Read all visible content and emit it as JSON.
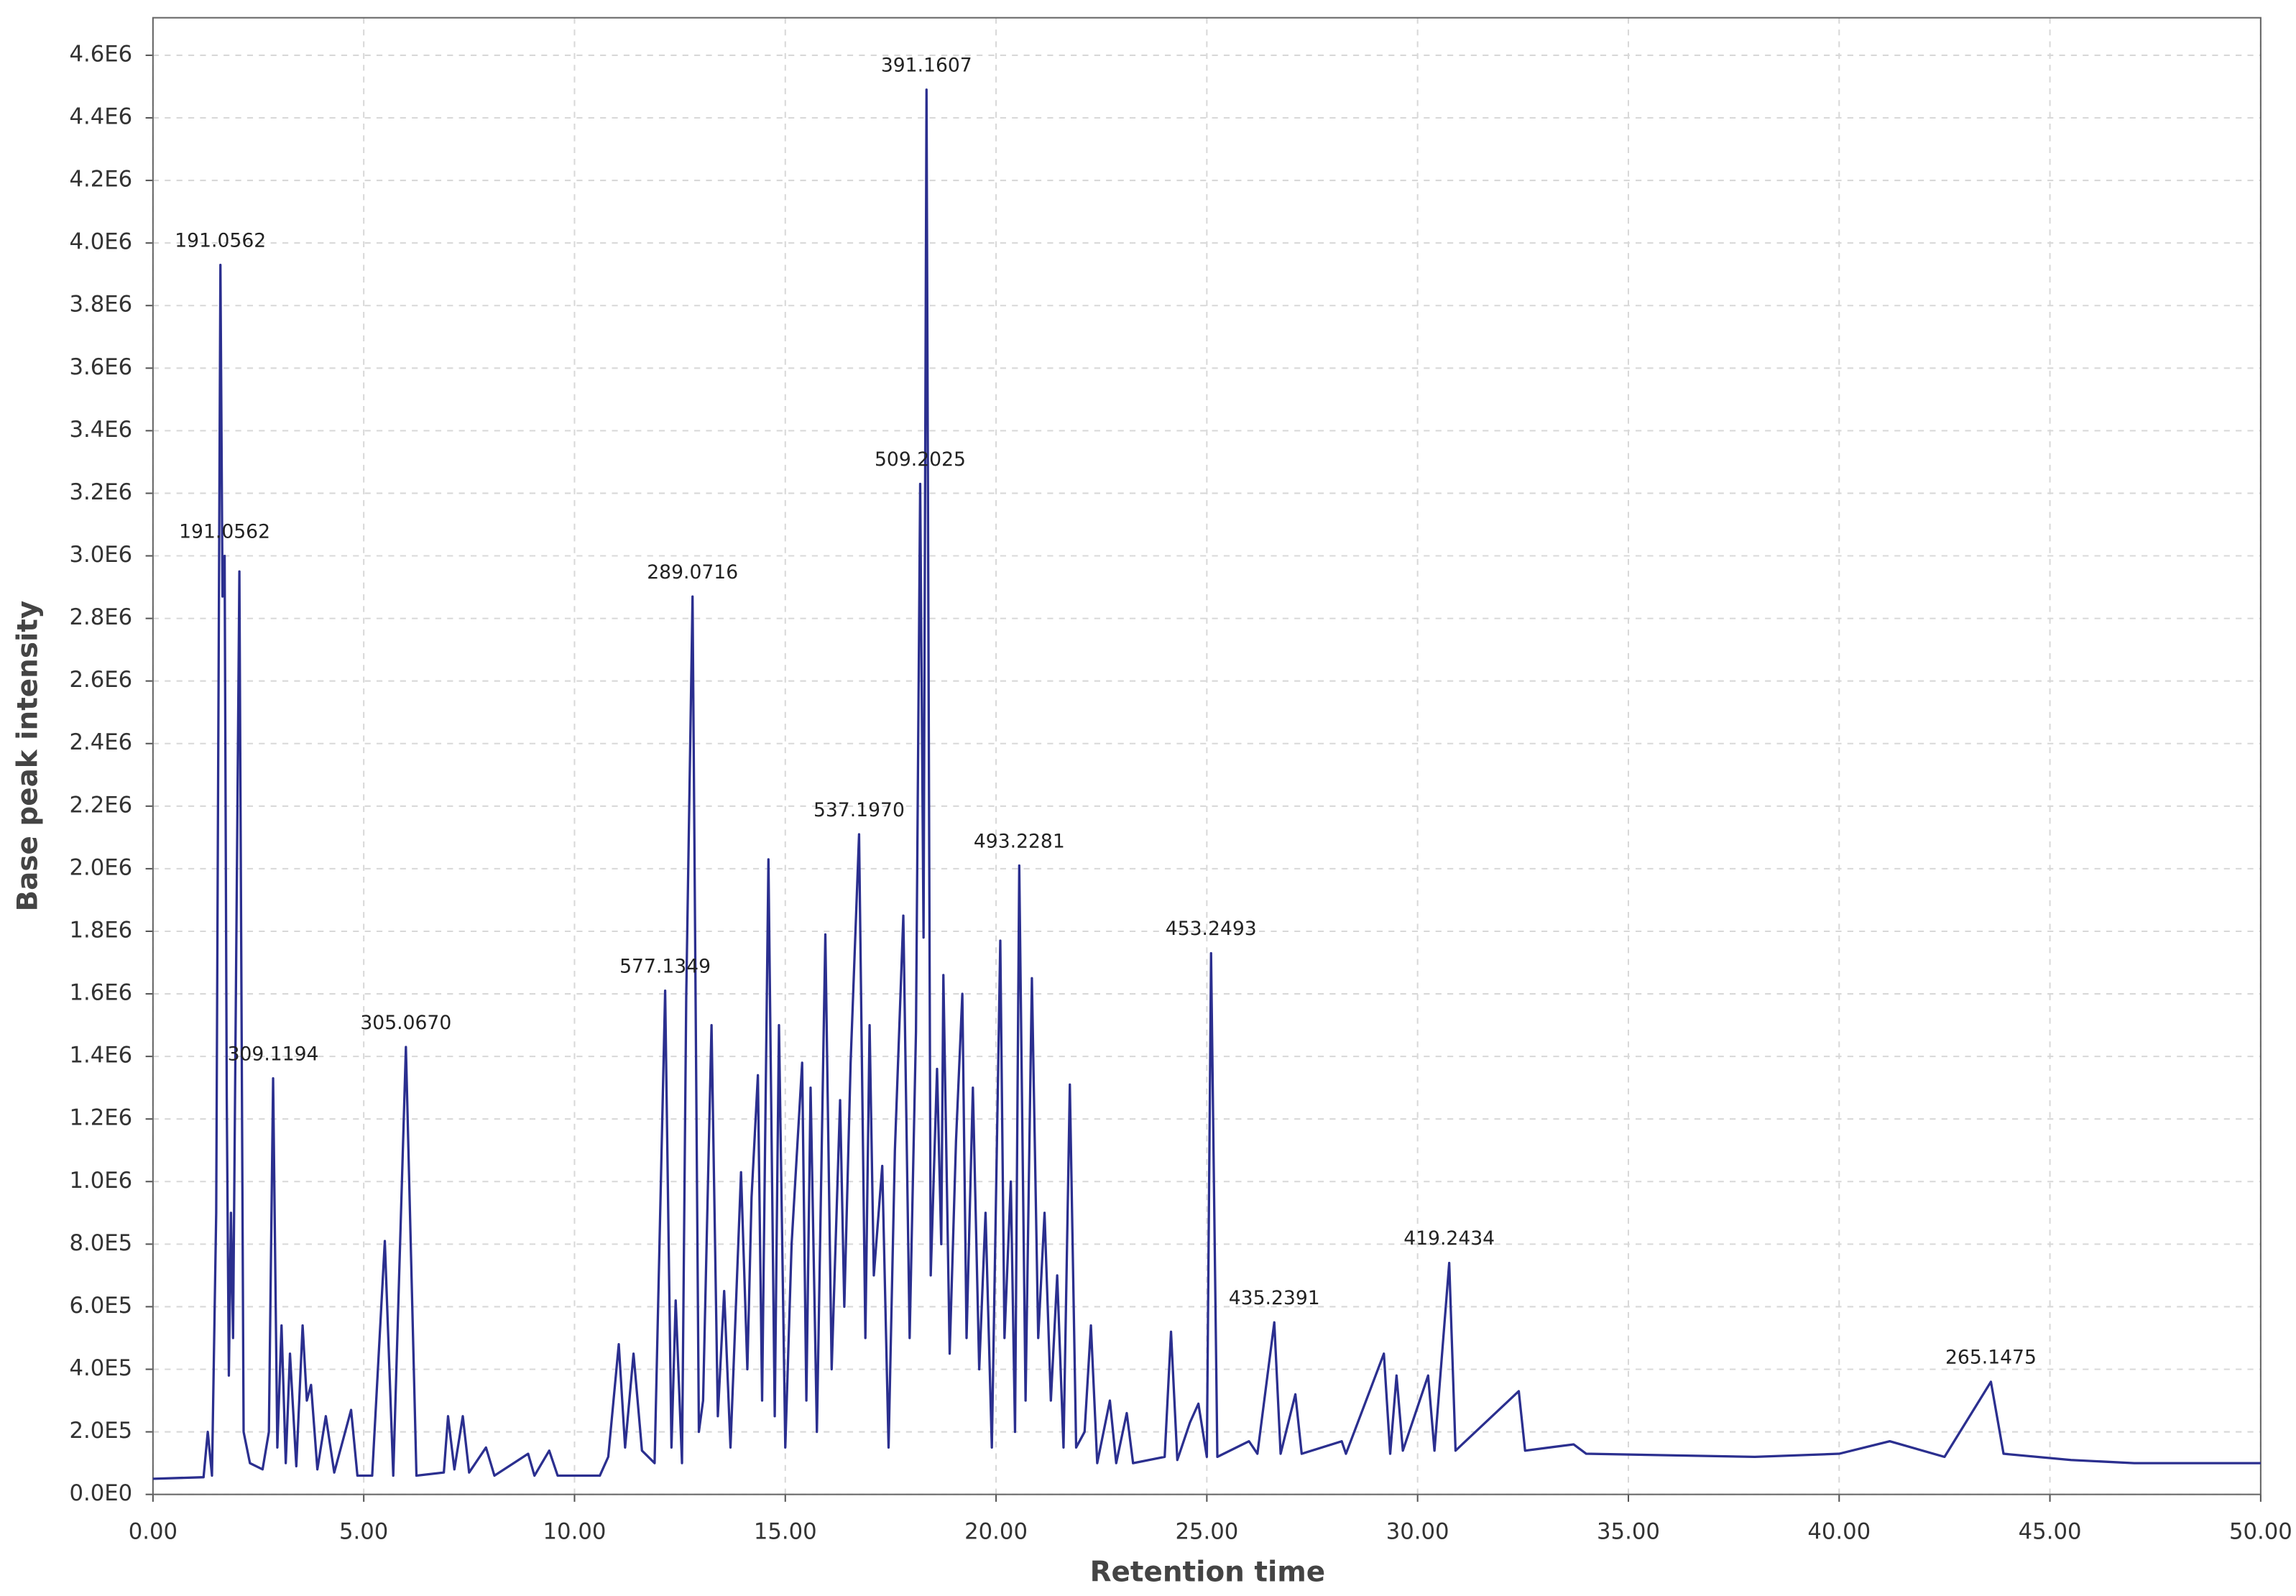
{
  "chart_data": {
    "type": "line",
    "x_label": "Retention time",
    "y_label": "Base peak intensity",
    "color": "#2b2f8f",
    "grid": true,
    "xlim": [
      0,
      50
    ],
    "ylim": [
      0,
      4720000
    ],
    "xticks": [
      {
        "value": 0,
        "label": "0.00"
      },
      {
        "value": 5,
        "label": "5.00"
      },
      {
        "value": 10,
        "label": "10.00"
      },
      {
        "value": 15,
        "label": "15.00"
      },
      {
        "value": 20,
        "label": "20.00"
      },
      {
        "value": 25,
        "label": "25.00"
      },
      {
        "value": 30,
        "label": "30.00"
      },
      {
        "value": 35,
        "label": "35.00"
      },
      {
        "value": 40,
        "label": "40.00"
      },
      {
        "value": 45,
        "label": "45.00"
      },
      {
        "value": 50,
        "label": "50.00"
      }
    ],
    "yticks": [
      {
        "value": 0,
        "label": "0.0E0"
      },
      {
        "value": 200000,
        "label": "2.0E5"
      },
      {
        "value": 400000,
        "label": "4.0E5"
      },
      {
        "value": 600000,
        "label": "6.0E5"
      },
      {
        "value": 800000,
        "label": "8.0E5"
      },
      {
        "value": 1000000,
        "label": "1.0E6"
      },
      {
        "value": 1200000,
        "label": "1.2E6"
      },
      {
        "value": 1400000,
        "label": "1.4E6"
      },
      {
        "value": 1600000,
        "label": "1.6E6"
      },
      {
        "value": 1800000,
        "label": "1.8E6"
      },
      {
        "value": 2000000,
        "label": "2.0E6"
      },
      {
        "value": 2200000,
        "label": "2.2E6"
      },
      {
        "value": 2400000,
        "label": "2.4E6"
      },
      {
        "value": 2600000,
        "label": "2.6E6"
      },
      {
        "value": 2800000,
        "label": "2.8E6"
      },
      {
        "value": 3000000,
        "label": "3.0E6"
      },
      {
        "value": 3200000,
        "label": "3.2E6"
      },
      {
        "value": 3400000,
        "label": "3.4E6"
      },
      {
        "value": 3600000,
        "label": "3.6E6"
      },
      {
        "value": 3800000,
        "label": "3.8E6"
      },
      {
        "value": 4000000,
        "label": "4.0E6"
      },
      {
        "value": 4200000,
        "label": "4.2E6"
      },
      {
        "value": 4400000,
        "label": "4.4E6"
      },
      {
        "value": 4600000,
        "label": "4.6E6"
      }
    ],
    "x": [
      0,
      1.2,
      1.3,
      1.4,
      1.5,
      1.6,
      1.65,
      1.7,
      1.75,
      1.8,
      1.85,
      1.9,
      2.05,
      2.15,
      2.3,
      2.6,
      2.75,
      2.85,
      2.95,
      3.05,
      3.15,
      3.25,
      3.4,
      3.55,
      3.65,
      3.75,
      3.9,
      4.1,
      4.3,
      4.7,
      4.85,
      5.2,
      5.5,
      5.7,
      6.0,
      6.25,
      6.9,
      7.0,
      7.15,
      7.35,
      7.5,
      7.9,
      8.1,
      8.9,
      9.05,
      9.4,
      9.6,
      10.6,
      10.8,
      11.05,
      11.2,
      11.4,
      11.6,
      11.9,
      12.15,
      12.3,
      12.4,
      12.55,
      12.65,
      12.8,
      12.95,
      13.05,
      13.25,
      13.4,
      13.55,
      13.7,
      13.95,
      14.1,
      14.2,
      14.35,
      14.45,
      14.6,
      14.75,
      14.85,
      15.0,
      15.15,
      15.4,
      15.5,
      15.6,
      15.75,
      15.95,
      16.1,
      16.3,
      16.4,
      16.55,
      16.75,
      16.9,
      17.0,
      17.1,
      17.3,
      17.45,
      17.6,
      17.8,
      17.95,
      18.1,
      18.2,
      18.28,
      18.35,
      18.45,
      18.6,
      18.7,
      18.75,
      18.9,
      19.05,
      19.2,
      19.3,
      19.45,
      19.6,
      19.75,
      19.9,
      20.1,
      20.2,
      20.35,
      20.45,
      20.55,
      20.7,
      20.85,
      21.0,
      21.15,
      21.3,
      21.45,
      21.6,
      21.75,
      21.9,
      22.1,
      22.25,
      22.4,
      22.7,
      22.85,
      23.1,
      23.25,
      24.0,
      24.15,
      24.3,
      24.6,
      24.8,
      25.0,
      25.1,
      25.25,
      26.0,
      26.2,
      26.6,
      26.75,
      27.1,
      27.25,
      28.2,
      28.3,
      29.2,
      29.35,
      29.5,
      29.65,
      30.25,
      30.4,
      30.75,
      30.9,
      32.4,
      32.55,
      33.7,
      34,
      38,
      40,
      41.2,
      42.5,
      43.6,
      43.9,
      45.5,
      47,
      50
    ],
    "values": [
      50000,
      55000,
      200000,
      60000,
      900000,
      3930000,
      2870000,
      3000000,
      1270000,
      380000,
      900000,
      500000,
      2950000,
      200000,
      100000,
      80000,
      200000,
      1330000,
      150000,
      540000,
      100000,
      450000,
      90000,
      540000,
      300000,
      350000,
      80000,
      250000,
      70000,
      270000,
      60000,
      60000,
      810000,
      60000,
      1430000,
      60000,
      70000,
      250000,
      80000,
      250000,
      70000,
      150000,
      60000,
      130000,
      60000,
      140000,
      60000,
      60000,
      120000,
      480000,
      150000,
      450000,
      140000,
      100000,
      1610000,
      150000,
      620000,
      100000,
      1590000,
      2870000,
      200000,
      300000,
      1500000,
      250000,
      650000,
      150000,
      1030000,
      400000,
      950000,
      1340000,
      300000,
      2030000,
      250000,
      1500000,
      150000,
      800000,
      1380000,
      300000,
      1300000,
      200000,
      1790000,
      400000,
      1260000,
      600000,
      1380000,
      2110000,
      500000,
      1500000,
      700000,
      1050000,
      150000,
      1100000,
      1850000,
      500000,
      1480000,
      3230000,
      1780000,
      4490000,
      700000,
      1360000,
      800000,
      1660000,
      450000,
      1130000,
      1600000,
      500000,
      1300000,
      400000,
      900000,
      150000,
      1770000,
      500000,
      1000000,
      200000,
      2010000,
      300000,
      1650000,
      500000,
      900000,
      300000,
      700000,
      150000,
      1310000,
      150000,
      200000,
      540000,
      100000,
      300000,
      100000,
      260000,
      100000,
      120000,
      520000,
      110000,
      230000,
      290000,
      120000,
      1730000,
      120000,
      170000,
      130000,
      550000,
      130000,
      320000,
      130000,
      170000,
      130000,
      450000,
      130000,
      380000,
      140000,
      380000,
      140000,
      740000,
      140000,
      330000,
      140000,
      160000,
      130000,
      120000,
      130000,
      170000,
      120000,
      360000,
      130000,
      110000,
      100000,
      100000
    ],
    "annotations": [
      {
        "text": "191.0562",
        "x": 1.6,
        "y": 3930000
      },
      {
        "text": "191.0562",
        "x": 1.7,
        "y": 3000000
      },
      {
        "text": "309.1194",
        "x": 2.85,
        "y": 1330000
      },
      {
        "text": "305.0670",
        "x": 6.0,
        "y": 1430000
      },
      {
        "text": "577.1349",
        "x": 12.15,
        "y": 1610000
      },
      {
        "text": "289.0716",
        "x": 12.8,
        "y": 2870000
      },
      {
        "text": "537.1970",
        "x": 16.75,
        "y": 2110000
      },
      {
        "text": "509.2025",
        "x": 18.2,
        "y": 3230000
      },
      {
        "text": "391.1607",
        "x": 18.35,
        "y": 4490000
      },
      {
        "text": "493.2281",
        "x": 20.55,
        "y": 2010000
      },
      {
        "text": "453.2493",
        "x": 25.1,
        "y": 1730000
      },
      {
        "text": "435.2391",
        "x": 26.6,
        "y": 550000
      },
      {
        "text": "419.2434",
        "x": 30.75,
        "y": 740000
      },
      {
        "text": "265.1475",
        "x": 43.6,
        "y": 360000
      }
    ]
  }
}
